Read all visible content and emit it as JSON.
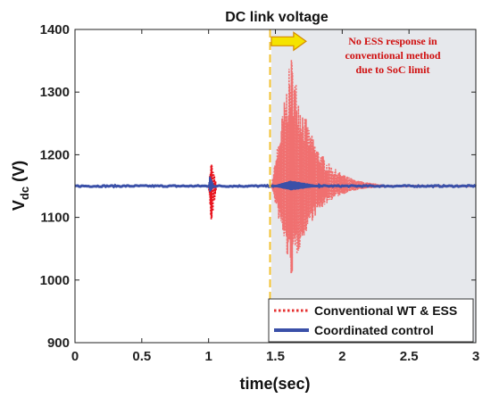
{
  "chart_data": {
    "type": "line",
    "title": "DC link voltage",
    "xlabel": "time(sec)",
    "ylabel_main": "V",
    "ylabel_sub": "dc",
    "ylabel_unit": " (V)",
    "xlim": [
      0,
      3
    ],
    "ylim": [
      900,
      1400
    ],
    "x_ticks": [
      0,
      0.5,
      1,
      1.5,
      2,
      2.5,
      3
    ],
    "x_tick_labels": [
      "0",
      "0.5",
      "1",
      "1.5",
      "2",
      "2.5",
      "3"
    ],
    "y_ticks": [
      900,
      1000,
      1100,
      1200,
      1300,
      1400
    ],
    "y_tick_labels": [
      "900",
      "1000",
      "1100",
      "1200",
      "1300",
      "1400"
    ],
    "grid": false,
    "legend_position": "bottom-right",
    "shaded_region": {
      "x_start": 1.47,
      "x_end": 3.0,
      "color": "#e6e8ec"
    },
    "marker_line": {
      "x": 1.46,
      "color": "#f0c030"
    },
    "annotation": {
      "lines": [
        "No ESS response in",
        "conventional method",
        "due to SoC limit"
      ],
      "arrow_x_start": 1.47,
      "arrow_x_end": 1.73,
      "arrow_y": 1381,
      "arrow_color": "#f5e300"
    },
    "series": [
      {
        "name": "Conventional WT & ESS",
        "color": "#e53030",
        "style": "dotted",
        "nominal": 1150,
        "oscillations": [
          {
            "x_start": 1.0,
            "x_end": 1.06,
            "x_peak": 1.02,
            "amp_up": 42,
            "amp_down": 68,
            "color": "#e8141e"
          },
          {
            "x_start": 1.47,
            "x_end": 2.3,
            "x_peak": 1.62,
            "amp_up": 213,
            "amp_down": 147,
            "decay": 0.16,
            "color": "#f07070"
          }
        ]
      },
      {
        "name": "Coordinated control",
        "color": "#3a50a8",
        "style": "solid",
        "nominal": 1150,
        "oscillations": [
          {
            "x_start": 1.0,
            "x_end": 1.04,
            "x_peak": 1.01,
            "amp_up": 18,
            "amp_down": 10
          },
          {
            "x_start": 1.47,
            "x_end": 1.85,
            "x_peak": 1.62,
            "amp_up": 9,
            "amp_down": 7
          }
        ]
      }
    ]
  }
}
